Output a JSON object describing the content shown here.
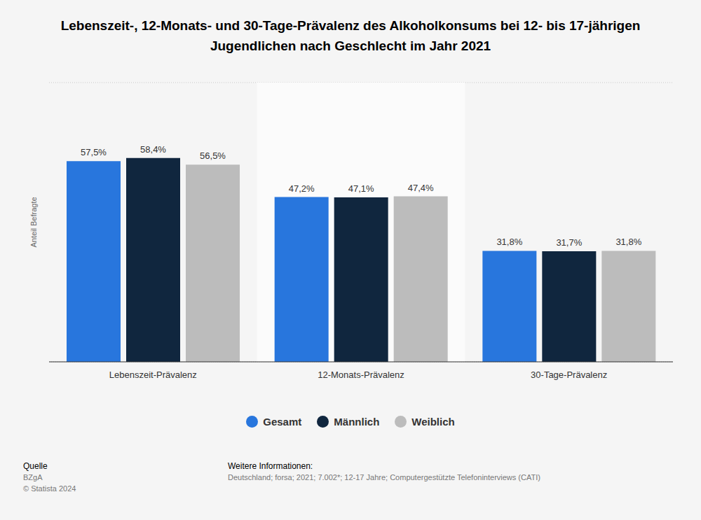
{
  "chart_data": {
    "type": "bar",
    "title": "Lebenszeit-, 12-Monats- und 30-Tage-Prävalenz des Alkoholkonsums bei 12- bis 17-jährigen Jugendlichen nach Geschlecht im Jahr 2021",
    "y_label": "Anteil Befragte",
    "categories": [
      "Lebenszeit-Prävalenz",
      "12-Monats-Prävalenz",
      "30-Tage-Prävalenz"
    ],
    "series": [
      {
        "name": "Gesamt",
        "color": "#2876dd",
        "values": [
          57.5,
          47.2,
          31.8
        ],
        "value_labels": [
          "57,5%",
          "47,2%",
          "31,8%"
        ]
      },
      {
        "name": "Männlich",
        "color": "#10263e",
        "values": [
          58.4,
          47.1,
          31.7
        ],
        "value_labels": [
          "58,4%",
          "47,1%",
          "31,7%"
        ]
      },
      {
        "name": "Weiblich",
        "color": "#bcbcbc",
        "values": [
          56.5,
          47.4,
          31.8
        ],
        "value_labels": [
          "56,5%",
          "47,4%",
          "31,8%"
        ]
      }
    ],
    "ylim": [
      0,
      80
    ],
    "yticks": [
      0,
      20,
      40,
      60,
      80
    ],
    "grid": true,
    "data_labels": true,
    "tick_labels": "x",
    "legend": "bottom",
    "annotations": [
      "Quelle",
      "BZgA",
      "© Statista 2024",
      "Weitere Informationen:",
      "Deutschland; forsa; 2021; 7.002*; 12-17 Jahre; Computergestützte Telefoninterviews (CATI)"
    ]
  }
}
